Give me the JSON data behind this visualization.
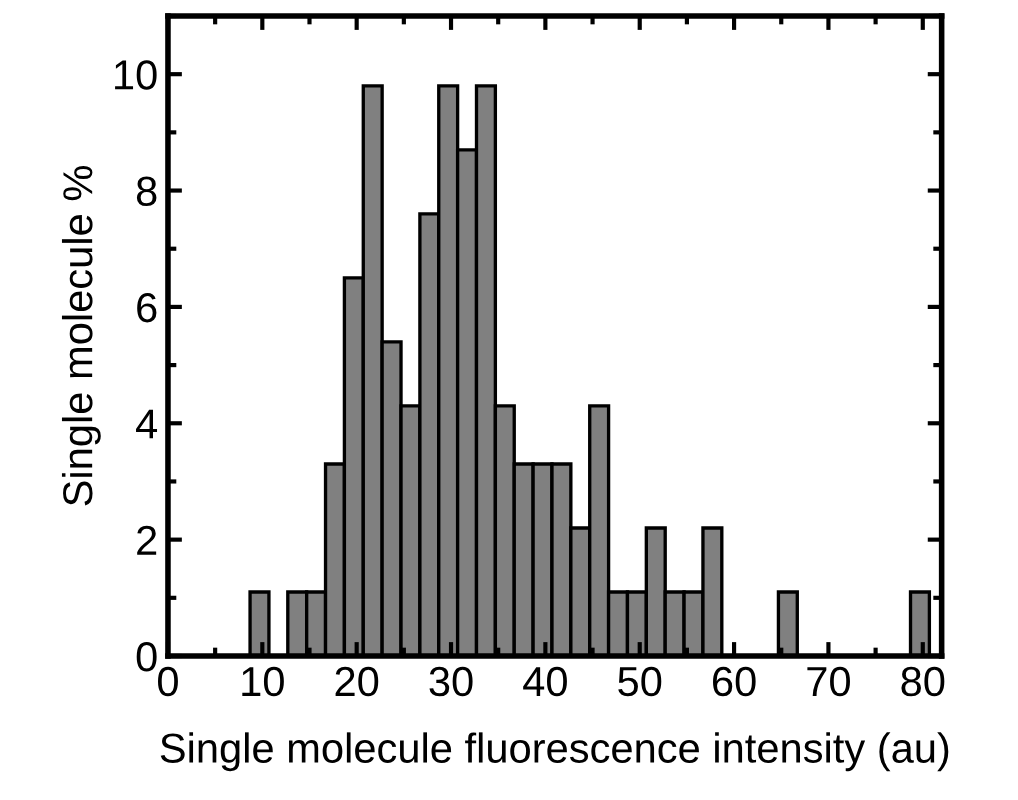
{
  "chart_data": {
    "type": "histogram",
    "xlabel": "Single molecule fluorescence intensity (au)",
    "ylabel": "Single molecule %",
    "bins": [
      8.7,
      10.7,
      12.7,
      14.7,
      16.7,
      18.7,
      20.7,
      22.7,
      24.7,
      26.7,
      28.7,
      30.7,
      32.7,
      34.7,
      36.7,
      38.7,
      40.7,
      42.7,
      44.7,
      46.7,
      48.7,
      50.7,
      52.7,
      54.7,
      56.7,
      58.7,
      60.7,
      62.7,
      64.7,
      66.7,
      68.7,
      70.7,
      72.7,
      74.7,
      76.7,
      78.7,
      80.7
    ],
    "values": [
      1.1,
      0,
      1.1,
      1.1,
      3.3,
      6.5,
      9.8,
      5.4,
      4.3,
      7.6,
      9.8,
      8.7,
      9.8,
      4.3,
      3.3,
      3.3,
      3.3,
      2.2,
      4.3,
      1.1,
      1.1,
      2.2,
      1.1,
      1.1,
      2.2,
      0,
      0,
      0,
      1.1,
      0,
      0,
      0,
      0,
      0,
      0,
      1.1
    ],
    "color": "#808080",
    "xlim": [
      0,
      82
    ],
    "ylim": [
      0,
      11
    ],
    "xticks": [
      0,
      10,
      20,
      30,
      40,
      50,
      60,
      70,
      80
    ],
    "yticks": [
      0,
      2,
      4,
      6,
      8,
      10
    ],
    "grid": false
  }
}
